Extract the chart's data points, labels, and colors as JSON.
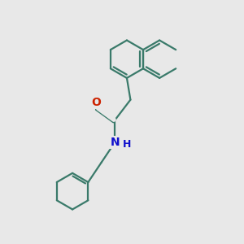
{
  "background_color": "#e8e8e8",
  "bond_color": "#3a7a6a",
  "N_color": "#1010cc",
  "O_color": "#cc2200",
  "line_width": 1.6,
  "figsize": [
    3.0,
    3.0
  ],
  "dpi": 100,
  "xlim": [
    0,
    10
  ],
  "ylim": [
    0,
    10
  ]
}
